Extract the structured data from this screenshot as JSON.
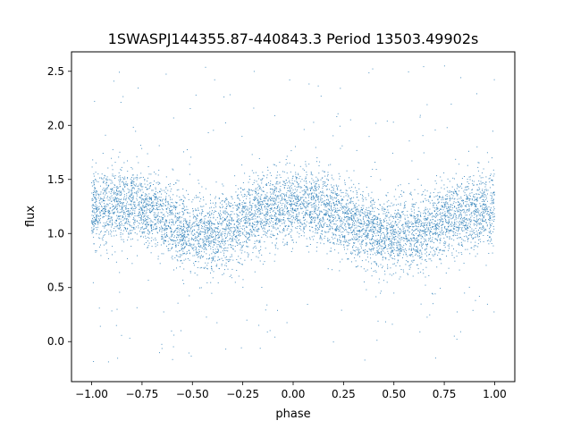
{
  "chart_data": {
    "type": "scatter",
    "title": "1SWASPJ144355.87-440843.3 Period 13503.49902s",
    "xlabel": "phase",
    "ylabel": "flux",
    "xlim": [
      -1.1,
      1.1
    ],
    "ylim": [
      -0.37,
      2.68
    ],
    "xticks": [
      -1.0,
      -0.75,
      -0.5,
      -0.25,
      0.0,
      0.25,
      0.5,
      0.75,
      1.0
    ],
    "xtick_labels": [
      "−1.00",
      "−0.75",
      "−0.50",
      "−0.25",
      "0.00",
      "0.25",
      "0.50",
      "0.75",
      "1.00"
    ],
    "yticks": [
      0.0,
      0.5,
      1.0,
      1.5,
      2.0,
      2.5
    ],
    "ytick_labels": [
      "0.0",
      "0.5",
      "1.0",
      "1.5",
      "2.0",
      "2.5"
    ],
    "grid": false,
    "legend": "none",
    "marker_color": "#1f77b4",
    "series": [
      {
        "x": [
          -1.0,
          -0.95,
          -0.9,
          -0.85,
          -0.8,
          -0.75,
          -0.7,
          -0.65,
          -0.6,
          -0.55,
          -0.5,
          -0.45,
          -0.4,
          -0.35,
          -0.3,
          -0.25,
          -0.2,
          -0.15,
          -0.1,
          -0.05,
          0.0,
          0.05,
          0.1,
          0.15,
          0.2,
          0.25,
          0.3,
          0.35,
          0.4,
          0.45,
          0.5,
          0.55,
          0.6,
          0.65,
          0.7,
          0.75,
          0.8,
          0.85,
          0.9,
          0.95,
          1.0
        ],
        "y": [
          1.22,
          1.24,
          1.26,
          1.27,
          1.27,
          1.25,
          1.21,
          1.15,
          1.09,
          1.03,
          1.0,
          0.98,
          0.99,
          1.02,
          1.06,
          1.11,
          1.16,
          1.21,
          1.24,
          1.26,
          1.27,
          1.27,
          1.26,
          1.24,
          1.21,
          1.16,
          1.11,
          1.06,
          1.02,
          0.99,
          0.98,
          0.99,
          1.01,
          1.04,
          1.08,
          1.12,
          1.16,
          1.19,
          1.21,
          1.22,
          1.22
        ],
        "spread": 0.17,
        "outlier_range": [
          -0.2,
          2.55
        ]
      }
    ]
  }
}
